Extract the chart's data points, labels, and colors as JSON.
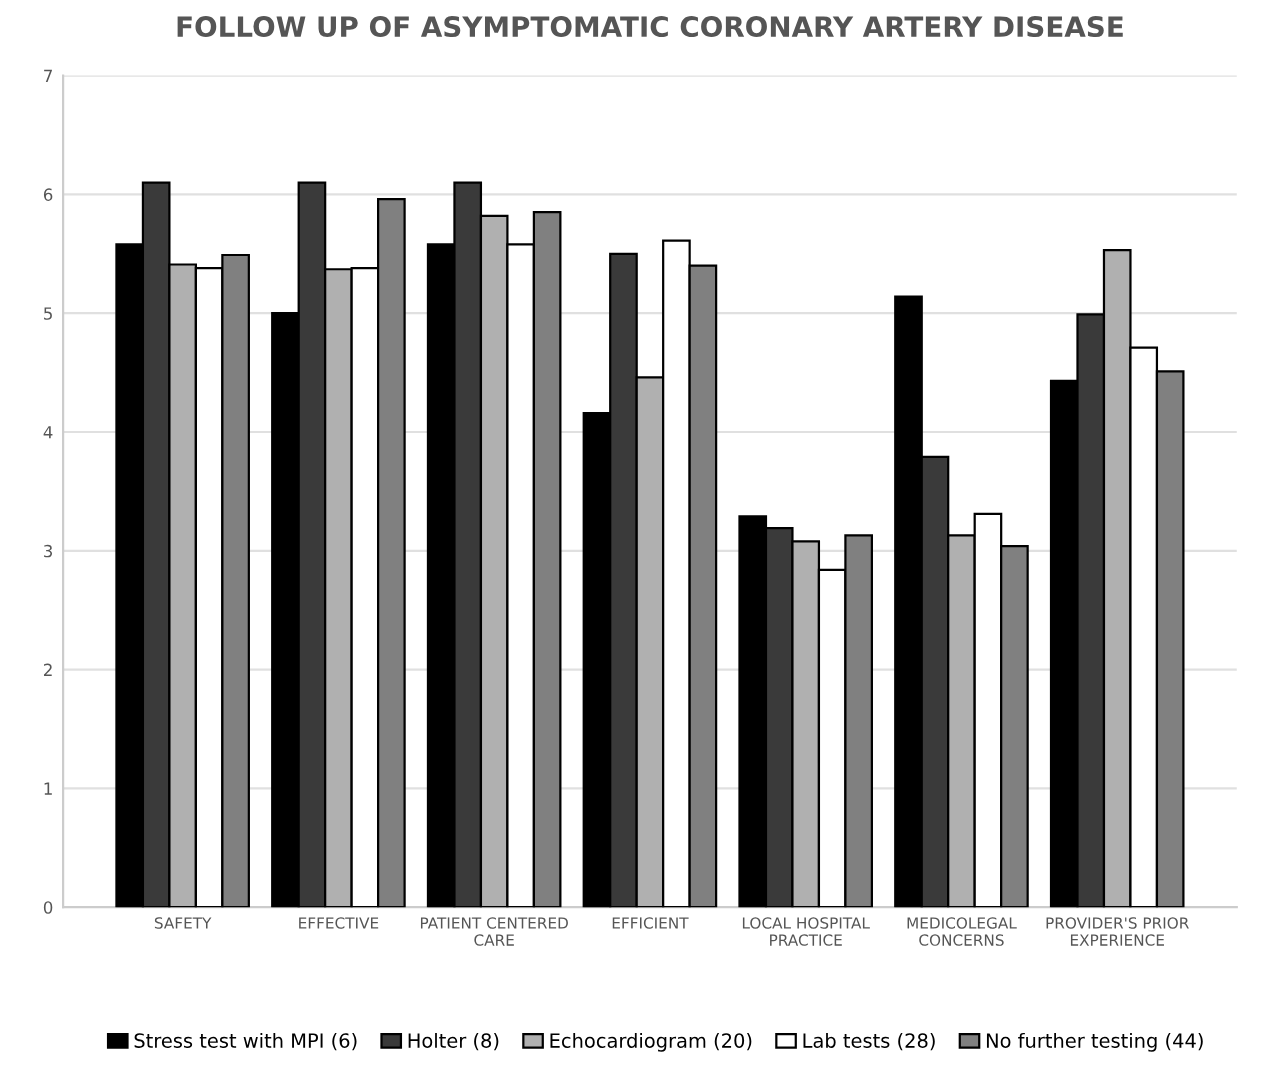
{
  "chart_data": {
    "type": "bar",
    "title": "FOLLOW UP OF ASYMPTOMATIC CORONARY ARTERY DISEASE",
    "categories": [
      "SAFETY",
      "EFFECTIVE",
      "PATIENT CENTERED\nCARE",
      "EFFICIENT",
      "LOCAL HOSPITAL\nPRACTICE",
      "MEDICOLEGAL\nCONCERNS",
      "PROVIDER'S PRIOR\nEXPERIENCE"
    ],
    "series": [
      {
        "name": "Stress test with MPI (6)",
        "color": "#000000",
        "values": [
          5.58,
          5.0,
          5.58,
          4.16,
          3.29,
          5.14,
          4.43
        ]
      },
      {
        "name": "Holter (8)",
        "color": "#3a3a3a",
        "values": [
          6.1,
          6.1,
          6.1,
          5.5,
          3.19,
          3.79,
          4.99
        ]
      },
      {
        "name": "Echocardiogram (20)",
        "color": "#b0b0b0",
        "values": [
          5.41,
          5.37,
          5.82,
          4.46,
          3.08,
          3.13,
          5.53
        ]
      },
      {
        "name": "Lab tests (28)",
        "color": "#ffffff",
        "values": [
          5.38,
          5.38,
          5.58,
          5.61,
          2.84,
          3.31,
          4.71
        ]
      },
      {
        "name": "No further testing (44)",
        "color": "#808080",
        "values": [
          5.49,
          5.96,
          5.85,
          5.4,
          3.13,
          3.04,
          4.51
        ]
      }
    ],
    "ylim": [
      0,
      7
    ],
    "yticks": [
      0,
      1,
      2,
      3,
      4,
      5,
      6,
      7
    ],
    "grid": "y",
    "legend": "bottom"
  }
}
